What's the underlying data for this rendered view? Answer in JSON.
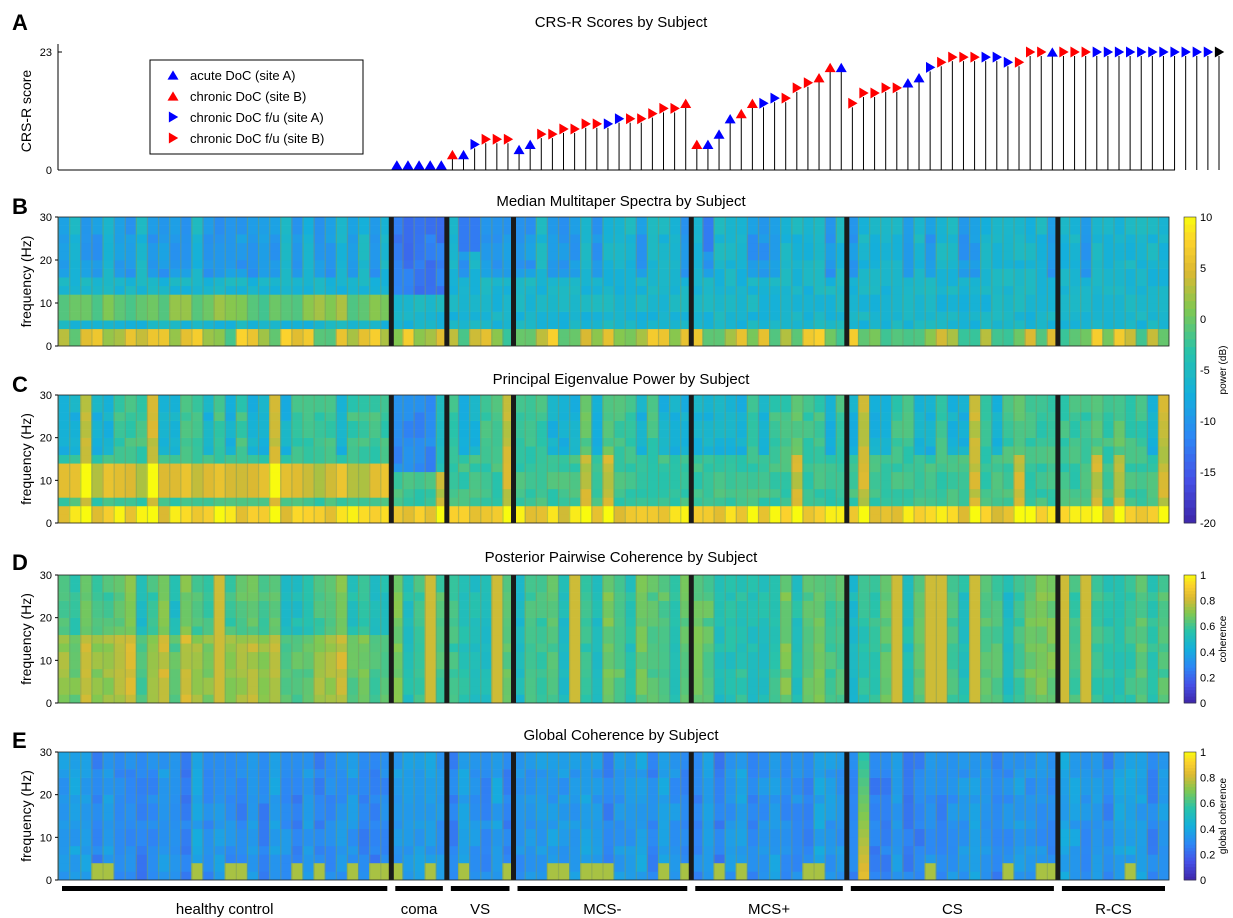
{
  "colors": {
    "acute_A": "#0000ff",
    "chronic_B": "#ff0000",
    "separator": "#1a1a1a",
    "colormap": "parula"
  },
  "chart_data": [
    {
      "id": "A",
      "type": "scatter",
      "title": "CRS-R Scores by Subject",
      "ylabel": "CRS-R score",
      "ylim": [
        0,
        23
      ],
      "yticks": [
        "0",
        "23"
      ],
      "legend": {
        "placement": "top-left",
        "entries": [
          {
            "label": "acute DoC (site A)",
            "marker": "triangle-up",
            "color": "#0000ff"
          },
          {
            "label": "chronic DoC (site B)",
            "marker": "triangle-up",
            "color": "#ff0000"
          },
          {
            "label": "chronic DoC f/u (site A)",
            "marker": "triangle-right",
            "color": "#0000ff"
          },
          {
            "label": "chronic DoC f/u (site B)",
            "marker": "triangle-right",
            "color": "#ff0000"
          }
        ]
      },
      "n_subjects": 100,
      "scores": [
        null,
        null,
        null,
        null,
        null,
        null,
        null,
        null,
        null,
        null,
        null,
        null,
        null,
        null,
        null,
        null,
        null,
        null,
        null,
        null,
        null,
        null,
        null,
        null,
        null,
        null,
        null,
        null,
        null,
        null,
        1,
        1,
        1,
        1,
        1,
        3,
        3,
        5,
        6,
        6,
        6,
        4,
        5,
        7,
        7,
        8,
        8,
        9,
        9,
        9,
        10,
        10,
        10,
        11,
        12,
        12,
        13,
        5,
        5,
        7,
        10,
        11,
        13,
        13,
        14,
        14,
        16,
        17,
        18,
        20,
        20,
        13,
        15,
        15,
        16,
        16,
        17,
        18,
        20,
        21,
        22,
        22,
        22,
        22,
        22,
        21,
        21,
        23,
        23,
        23,
        23,
        23,
        23,
        23,
        23,
        23,
        23,
        23,
        23,
        23,
        23,
        23,
        23,
        23,
        23
      ],
      "markers": [
        null,
        null,
        null,
        null,
        null,
        null,
        null,
        null,
        null,
        null,
        null,
        null,
        null,
        null,
        null,
        null,
        null,
        null,
        null,
        null,
        null,
        null,
        null,
        null,
        null,
        null,
        null,
        null,
        null,
        null,
        "au",
        "au",
        "au",
        "au",
        "au",
        "cu",
        "au",
        "ar",
        "cr",
        "cr",
        "cr",
        "au",
        "au",
        "cr",
        "cr",
        "cr",
        "cr",
        "cr",
        "cr",
        "ar",
        "ar",
        "cr",
        "cr",
        "cr",
        "cr",
        "cr",
        "cu",
        "cu",
        "au",
        "au",
        "au",
        "cu",
        "cu",
        "ar",
        "ar",
        "cr",
        "cr",
        "cr",
        "cu",
        "cu",
        "au",
        "cr",
        "cr",
        "cr",
        "cr",
        "cr",
        "au",
        "au",
        "ar",
        "cr",
        "cr",
        "cr",
        "cr",
        "ar",
        "ar",
        "ar",
        "cr",
        "cr",
        "cr",
        "au",
        "cr",
        "cr",
        "cr",
        "ar",
        "ar",
        "ar",
        "ar",
        "ar",
        "ar",
        "ar",
        "ar",
        "ar",
        "ar",
        "ar"
      ]
    },
    {
      "id": "B",
      "type": "heatmap",
      "title": "Median Multitaper Spectra by Subject",
      "ylabel": "frequency (Hz)",
      "ylim": [
        0,
        30
      ],
      "yticks": [
        "0",
        "10",
        "20",
        "30"
      ],
      "colorbar": {
        "label": "power (dB)",
        "range": [
          -20,
          10
        ],
        "ticks": [
          "10",
          "5",
          "0",
          "-5",
          "-10",
          "-15",
          "-20"
        ]
      }
    },
    {
      "id": "C",
      "type": "heatmap",
      "title": "Principal Eigenvalue Power by Subject",
      "ylabel": "frequency (Hz)",
      "ylim": [
        0,
        30
      ],
      "yticks": [
        "0",
        "10",
        "20",
        "30"
      ]
    },
    {
      "id": "D",
      "type": "heatmap",
      "title": "Posterior Pairwise Coherence by Subject",
      "ylabel": "frequency (Hz)",
      "ylim": [
        0,
        30
      ],
      "yticks": [
        "0",
        "10",
        "20",
        "30"
      ],
      "colorbar": {
        "label": "coherence",
        "range": [
          0,
          1
        ],
        "ticks": [
          "1",
          "0.8",
          "0.6",
          "0.4",
          "0.2",
          "0"
        ]
      }
    },
    {
      "id": "E",
      "type": "heatmap",
      "title": "Global Coherence by Subject",
      "ylabel": "frequency (Hz)",
      "ylim": [
        0,
        30
      ],
      "yticks": [
        "0",
        "10",
        "20",
        "30"
      ],
      "colorbar": {
        "label": "global coherence",
        "range": [
          0,
          1
        ],
        "ticks": [
          "1",
          "0.8",
          "0.6",
          "0.4",
          "0.2",
          "0"
        ]
      }
    }
  ],
  "groups": [
    {
      "label": "healthy control",
      "start": 0,
      "end": 30
    },
    {
      "label": "coma",
      "start": 30,
      "end": 35
    },
    {
      "label": "VS",
      "start": 35,
      "end": 41
    },
    {
      "label": "MCS-",
      "start": 41,
      "end": 57
    },
    {
      "label": "MCS+",
      "start": 57,
      "end": 71
    },
    {
      "label": "CS",
      "start": 71,
      "end": 90
    },
    {
      "label": "R-CS",
      "start": 90,
      "end": 100
    }
  ]
}
